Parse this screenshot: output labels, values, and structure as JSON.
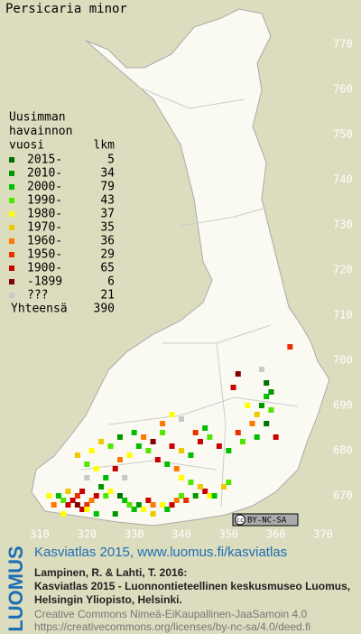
{
  "title": "Persicaria minor",
  "legend": {
    "header": [
      "Uusimman",
      "havainnon",
      "vuosi"
    ],
    "count_header": "lkm",
    "classes": [
      {
        "label": "2015-",
        "count": 5,
        "color": "#006e00"
      },
      {
        "label": "2010-",
        "count": 34,
        "color": "#009600"
      },
      {
        "label": "2000-",
        "count": 79,
        "color": "#00be00"
      },
      {
        "label": "1990-",
        "count": 43,
        "color": "#50e600"
      },
      {
        "label": "1980-",
        "count": 37,
        "color": "#ffff00"
      },
      {
        "label": "1970-",
        "count": 35,
        "color": "#f0c800"
      },
      {
        "label": "1960-",
        "count": 36,
        "color": "#ff7800"
      },
      {
        "label": "1950-",
        "count": 29,
        "color": "#e63200"
      },
      {
        "label": "1900-",
        "count": 65,
        "color": "#c80000"
      },
      {
        "label": "-1899",
        "count": 6,
        "color": "#820000"
      },
      {
        "label": "???",
        "count": 21,
        "color": "#c8c8c8"
      }
    ],
    "total_label": "Yhteensä",
    "total": 390
  },
  "xlim": [
    310,
    370
  ],
  "ylim": [
    670,
    770
  ],
  "xticks": [
    310,
    320,
    330,
    340,
    350,
    360,
    370
  ],
  "yticks": [
    670,
    680,
    690,
    700,
    710,
    720,
    730,
    740,
    750,
    760,
    770
  ],
  "occurrences": [
    [
      316,
      668,
      8
    ],
    [
      317,
      669,
      8
    ],
    [
      318,
      668,
      9
    ],
    [
      319,
      667,
      8
    ],
    [
      320,
      668,
      7
    ],
    [
      321,
      669,
      6
    ],
    [
      318,
      670,
      7
    ],
    [
      319,
      671,
      8
    ],
    [
      320,
      667,
      4
    ],
    [
      322,
      670,
      8
    ],
    [
      315,
      669,
      3
    ],
    [
      314,
      670,
      2
    ],
    [
      312,
      670,
      4
    ],
    [
      313,
      668,
      6
    ],
    [
      316,
      671,
      5
    ],
    [
      323,
      672,
      1
    ],
    [
      324,
      670,
      3
    ],
    [
      325,
      671,
      4
    ],
    [
      327,
      670,
      0
    ],
    [
      328,
      669,
      2
    ],
    [
      329,
      668,
      3
    ],
    [
      330,
      667,
      2
    ],
    [
      331,
      668,
      1
    ],
    [
      332,
      667,
      4
    ],
    [
      333,
      669,
      8
    ],
    [
      334,
      668,
      6
    ],
    [
      336,
      668,
      4
    ],
    [
      337,
      667,
      2
    ],
    [
      338,
      668,
      8
    ],
    [
      339,
      669,
      6
    ],
    [
      340,
      670,
      3
    ],
    [
      341,
      669,
      7
    ],
    [
      343,
      670,
      1
    ],
    [
      345,
      671,
      8
    ],
    [
      346,
      670,
      4
    ],
    [
      347,
      670,
      2
    ],
    [
      344,
      672,
      5
    ],
    [
      342,
      673,
      3
    ],
    [
      340,
      674,
      4
    ],
    [
      339,
      676,
      6
    ],
    [
      337,
      677,
      2
    ],
    [
      335,
      678,
      8
    ],
    [
      333,
      680,
      3
    ],
    [
      331,
      681,
      2
    ],
    [
      329,
      679,
      4
    ],
    [
      327,
      678,
      6
    ],
    [
      326,
      676,
      8
    ],
    [
      324,
      674,
      2
    ],
    [
      322,
      676,
      4
    ],
    [
      320,
      677,
      3
    ],
    [
      318,
      679,
      5
    ],
    [
      321,
      680,
      4
    ],
    [
      323,
      682,
      5
    ],
    [
      325,
      681,
      3
    ],
    [
      327,
      683,
      1
    ],
    [
      330,
      684,
      2
    ],
    [
      332,
      683,
      6
    ],
    [
      334,
      682,
      9
    ],
    [
      336,
      684,
      3
    ],
    [
      338,
      681,
      8
    ],
    [
      340,
      680,
      5
    ],
    [
      342,
      679,
      2
    ],
    [
      344,
      682,
      8
    ],
    [
      343,
      684,
      7
    ],
    [
      340,
      687,
      10
    ],
    [
      338,
      688,
      4
    ],
    [
      336,
      686,
      6
    ],
    [
      345,
      685,
      2
    ],
    [
      346,
      683,
      3
    ],
    [
      348,
      681,
      8
    ],
    [
      350,
      680,
      2
    ],
    [
      352,
      684,
      7
    ],
    [
      353,
      682,
      3
    ],
    [
      355,
      686,
      6
    ],
    [
      356,
      688,
      5
    ],
    [
      354,
      690,
      4
    ],
    [
      357,
      690,
      1
    ],
    [
      358,
      692,
      2
    ],
    [
      359,
      689,
      3
    ],
    [
      358,
      686,
      0
    ],
    [
      356,
      683,
      2
    ],
    [
      360,
      683,
      8
    ],
    [
      352,
      697,
      9
    ],
    [
      351,
      694,
      8
    ],
    [
      358,
      695,
      0
    ],
    [
      359,
      693,
      1
    ],
    [
      363,
      703,
      7
    ],
    [
      357,
      698,
      10
    ],
    [
      328,
      674,
      10
    ],
    [
      320,
      674,
      10
    ],
    [
      349,
      672,
      5
    ],
    [
      350,
      673,
      3
    ],
    [
      315,
      666,
      4
    ],
    [
      322,
      666,
      2
    ],
    [
      326,
      666,
      1
    ],
    [
      334,
      666,
      5
    ]
  ],
  "license_badge": [
    "cc",
    "BY-NC-SA"
  ],
  "footer": {
    "logo": "LUOMUS",
    "site": "Kasviatlas 2015, www.luomus.fi/kasviatlas",
    "citation": [
      "Lampinen, R. & Lahti, T. 2016:",
      "Kasviatlas 2015 - Luonnontieteellinen keskusmuseo Luomus,",
      "Helsingin Yliopisto, Helsinki."
    ],
    "license": [
      "Creative Commons Nimeä-EiKaupallinen-JaaSamoin 4.0",
      "https://creativecommons.org/licenses/by-nc-sa/4.0/deed.fi"
    ]
  }
}
